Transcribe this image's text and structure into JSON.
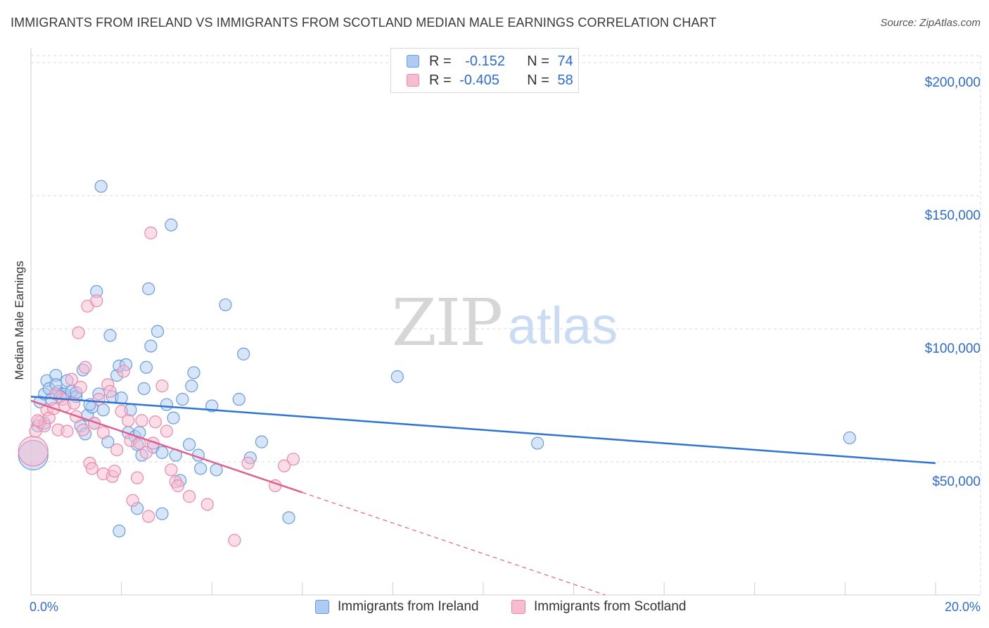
{
  "title": "IMMIGRANTS FROM IRELAND VS IMMIGRANTS FROM SCOTLAND MEDIAN MALE EARNINGS CORRELATION CHART",
  "source": "Source: ZipAtlas.com",
  "watermark": {
    "zip": "ZIP",
    "atlas": "atlas"
  },
  "legend": {
    "ireland": {
      "r_label": "R = ",
      "r_value": "-0.152",
      "n_label": "N = ",
      "n_value": "74"
    },
    "scotland": {
      "r_label": "R = ",
      "r_value": "-0.405",
      "n_label": "N = ",
      "n_value": "58"
    }
  },
  "colors": {
    "ireland_fill": "#aecbf2",
    "ireland_stroke": "#6a9be0",
    "ireland_line": "#2f74d0",
    "scotland_fill": "#f7bcd0",
    "scotland_stroke": "#e989aa",
    "scotland_line": "#e0608e",
    "grid": "#d9d9d9",
    "axis_text": "#2e6bd1"
  },
  "chart_data": {
    "type": "scatter",
    "title": "IMMIGRANTS FROM IRELAND VS IMMIGRANTS FROM SCOTLAND MEDIAN MALE EARNINGS CORRELATION CHART",
    "xlabel": "",
    "ylabel": "Median Male Earnings",
    "xlim": [
      0,
      20
    ],
    "ylim": [
      0,
      205000
    ],
    "x_tick_labels": [
      "0.0%",
      "20.0%"
    ],
    "y_ticks": [
      50000,
      100000,
      150000,
      200000
    ],
    "y_tick_labels": [
      "$50,000",
      "$100,000",
      "$150,000",
      "$200,000"
    ],
    "series": [
      {
        "name": "Immigrants from Ireland",
        "trend": {
          "x": [
            0,
            20
          ],
          "y": [
            74500,
            49500
          ],
          "dashed_to": null
        },
        "points": [
          [
            0.05,
            52500,
            "big"
          ],
          [
            0.15,
            63500
          ],
          [
            0.2,
            72500
          ],
          [
            0.3,
            75500
          ],
          [
            0.35,
            80500
          ],
          [
            0.4,
            77500
          ],
          [
            0.45,
            73500
          ],
          [
            0.55,
            82500
          ],
          [
            0.6,
            76500
          ],
          [
            0.7,
            75500
          ],
          [
            0.75,
            75500
          ],
          [
            0.8,
            80500
          ],
          [
            0.9,
            76500
          ],
          [
            1.0,
            74500
          ],
          [
            1.1,
            63500
          ],
          [
            1.15,
            84500
          ],
          [
            1.2,
            60500
          ],
          [
            1.25,
            67500
          ],
          [
            1.35,
            70500
          ],
          [
            1.4,
            64500
          ],
          [
            1.45,
            114000
          ],
          [
            1.5,
            75500
          ],
          [
            1.6,
            69500
          ],
          [
            1.7,
            57500
          ],
          [
            1.75,
            97500
          ],
          [
            1.8,
            74500
          ],
          [
            1.9,
            82500
          ],
          [
            1.95,
            86000
          ],
          [
            2.0,
            74000
          ],
          [
            2.1,
            86500
          ],
          [
            2.15,
            61000
          ],
          [
            2.2,
            69500
          ],
          [
            2.3,
            59500
          ],
          [
            2.35,
            56500
          ],
          [
            2.4,
            61000
          ],
          [
            2.45,
            52500
          ],
          [
            2.5,
            77500
          ],
          [
            2.55,
            85500
          ],
          [
            2.6,
            115000
          ],
          [
            2.65,
            93500
          ],
          [
            2.7,
            55500
          ],
          [
            2.8,
            99000
          ],
          [
            2.9,
            53500
          ],
          [
            3.0,
            71500
          ],
          [
            3.1,
            139000
          ],
          [
            3.15,
            66500
          ],
          [
            3.2,
            52500
          ],
          [
            3.35,
            73500
          ],
          [
            3.5,
            56500
          ],
          [
            3.55,
            78500
          ],
          [
            3.6,
            83500
          ],
          [
            3.7,
            52500
          ],
          [
            3.75,
            47500
          ],
          [
            4.0,
            71000
          ],
          [
            4.1,
            47000
          ],
          [
            4.3,
            109000
          ],
          [
            4.6,
            73500
          ],
          [
            4.7,
            90500
          ],
          [
            4.85,
            51500
          ],
          [
            5.1,
            57500
          ],
          [
            5.7,
            29000
          ],
          [
            8.1,
            82000
          ],
          [
            11.2,
            57000
          ],
          [
            18.1,
            59000
          ],
          [
            1.55,
            153500
          ],
          [
            1.95,
            24000
          ],
          [
            2.35,
            32500
          ],
          [
            2.9,
            30500
          ],
          [
            3.3,
            43000
          ],
          [
            1.0,
            76000
          ],
          [
            0.65,
            74500
          ],
          [
            0.3,
            64500
          ],
          [
            0.55,
            79000
          ],
          [
            1.3,
            71500
          ]
        ]
      },
      {
        "name": "Immigrants from Scotland",
        "trend": {
          "x": [
            0,
            6.0
          ],
          "y": [
            73000,
            38500
          ],
          "dashed_to": [
            20,
            -42000
          ]
        },
        "points": [
          [
            0.05,
            54000,
            "big"
          ],
          [
            0.1,
            61500
          ],
          [
            0.2,
            65000
          ],
          [
            0.3,
            63500
          ],
          [
            0.35,
            69500
          ],
          [
            0.4,
            66500
          ],
          [
            0.5,
            70000
          ],
          [
            0.6,
            62000
          ],
          [
            0.7,
            73500
          ],
          [
            0.75,
            71000
          ],
          [
            0.8,
            61500
          ],
          [
            0.9,
            81000
          ],
          [
            1.0,
            67000
          ],
          [
            1.05,
            98500
          ],
          [
            1.1,
            78000
          ],
          [
            1.2,
            85500
          ],
          [
            1.25,
            108500
          ],
          [
            1.3,
            49500
          ],
          [
            1.35,
            47500
          ],
          [
            1.4,
            64500
          ],
          [
            1.45,
            110500
          ],
          [
            1.5,
            73500
          ],
          [
            1.6,
            45500
          ],
          [
            1.7,
            79000
          ],
          [
            1.75,
            76500
          ],
          [
            1.8,
            44500
          ],
          [
            1.85,
            46500
          ],
          [
            1.9,
            54500
          ],
          [
            2.0,
            69000
          ],
          [
            2.05,
            84000
          ],
          [
            2.15,
            65500
          ],
          [
            2.2,
            58000
          ],
          [
            2.25,
            35500
          ],
          [
            2.35,
            44000
          ],
          [
            2.45,
            65500
          ],
          [
            2.55,
            53500
          ],
          [
            2.6,
            29500
          ],
          [
            2.65,
            136000
          ],
          [
            2.7,
            57000
          ],
          [
            2.75,
            65000
          ],
          [
            2.9,
            78500
          ],
          [
            3.1,
            47000
          ],
          [
            3.2,
            42500
          ],
          [
            3.25,
            41000
          ],
          [
            3.5,
            37000
          ],
          [
            3.9,
            34000
          ],
          [
            4.5,
            20500
          ],
          [
            4.8,
            49500
          ],
          [
            5.4,
            41000
          ],
          [
            5.6,
            48500
          ],
          [
            5.8,
            51000
          ],
          [
            1.6,
            61000
          ],
          [
            0.55,
            75500
          ],
          [
            0.95,
            72000
          ],
          [
            1.15,
            62000
          ],
          [
            2.4,
            57000
          ],
          [
            0.15,
            65500
          ],
          [
            3.0,
            61500
          ]
        ]
      }
    ]
  },
  "bottom_legend": {
    "ireland": "Immigrants from Ireland",
    "scotland": "Immigrants from Scotland"
  }
}
